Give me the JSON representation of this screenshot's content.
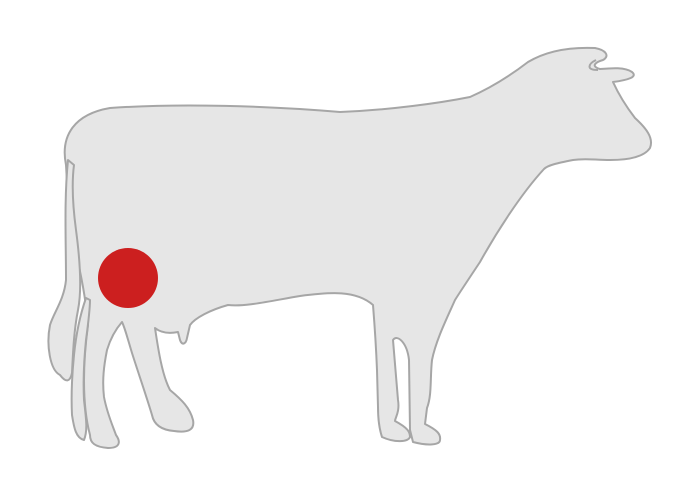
{
  "diagram": {
    "subject_icon": "cow-silhouette-icon",
    "marker_icon": "location-marker-icon",
    "colors": {
      "background": "#ffffff",
      "body_fill": "#e6e6e6",
      "body_stroke": "#a6a6a6",
      "marker": "#cc1f1f"
    }
  }
}
